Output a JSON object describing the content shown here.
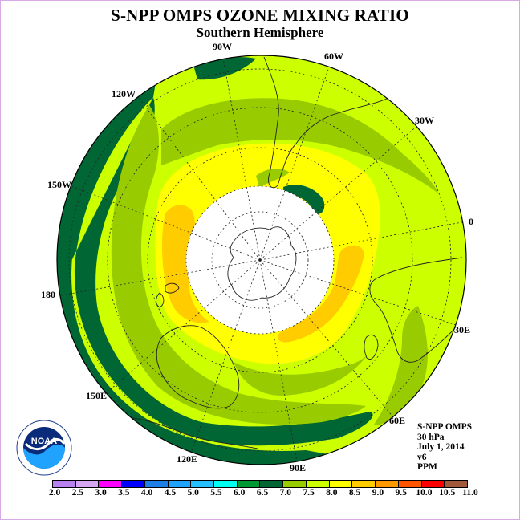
{
  "header": {
    "title": "S-NPP OMPS OZONE MIXING RATIO",
    "subtitle": "Southern Hemisphere"
  },
  "map": {
    "projection": "south polar stereographic",
    "longitude_labels": [
      "90W",
      "60W",
      "30W",
      "0",
      "30E",
      "60E",
      "90E",
      "120E",
      "150E",
      "180",
      "150W",
      "120W"
    ],
    "colors": {
      "lt_6_5": "#009933",
      "6_5_to_7_0": "#006633",
      "7_0_to_7_5": "#99cc00",
      "7_5_to_8_0": "#ccff00",
      "8_0_to_8_5": "#ffff00",
      "8_5_to_9_0": "#ffcc00",
      "missing": "#ffffff",
      "coastline": "#222222"
    }
  },
  "info": {
    "product": "S-NPP OMPS",
    "level": "30 hPa",
    "date": "July 1, 2014",
    "version": "v6",
    "units": "PPM"
  },
  "colorbar": {
    "labels": [
      "2.0",
      "2.5",
      "3.0",
      "3.5",
      "4.0",
      "4.5",
      "5.0",
      "5.5",
      "6.0",
      "6.5",
      "7.0",
      "7.5",
      "8.0",
      "8.5",
      "9.0",
      "9.5",
      "10.0",
      "10.5",
      "11.0"
    ],
    "colors": [
      "#b980f0",
      "#d6a6f2",
      "#ff00ff",
      "#0000ff",
      "#1e7fe6",
      "#1fa3ff",
      "#27c0ff",
      "#00ffee",
      "#009933",
      "#006633",
      "#99cc00",
      "#ccff00",
      "#ffff00",
      "#ffcc00",
      "#ff9900",
      "#ff5500",
      "#ff0000",
      "#a35a3c"
    ]
  },
  "logo": {
    "name": "NOAA",
    "ring_text": "NATIONAL OCEANIC AND ATMOSPHERIC ADMINISTRATION · U.S. DEPARTMENT OF COMMERCE"
  }
}
